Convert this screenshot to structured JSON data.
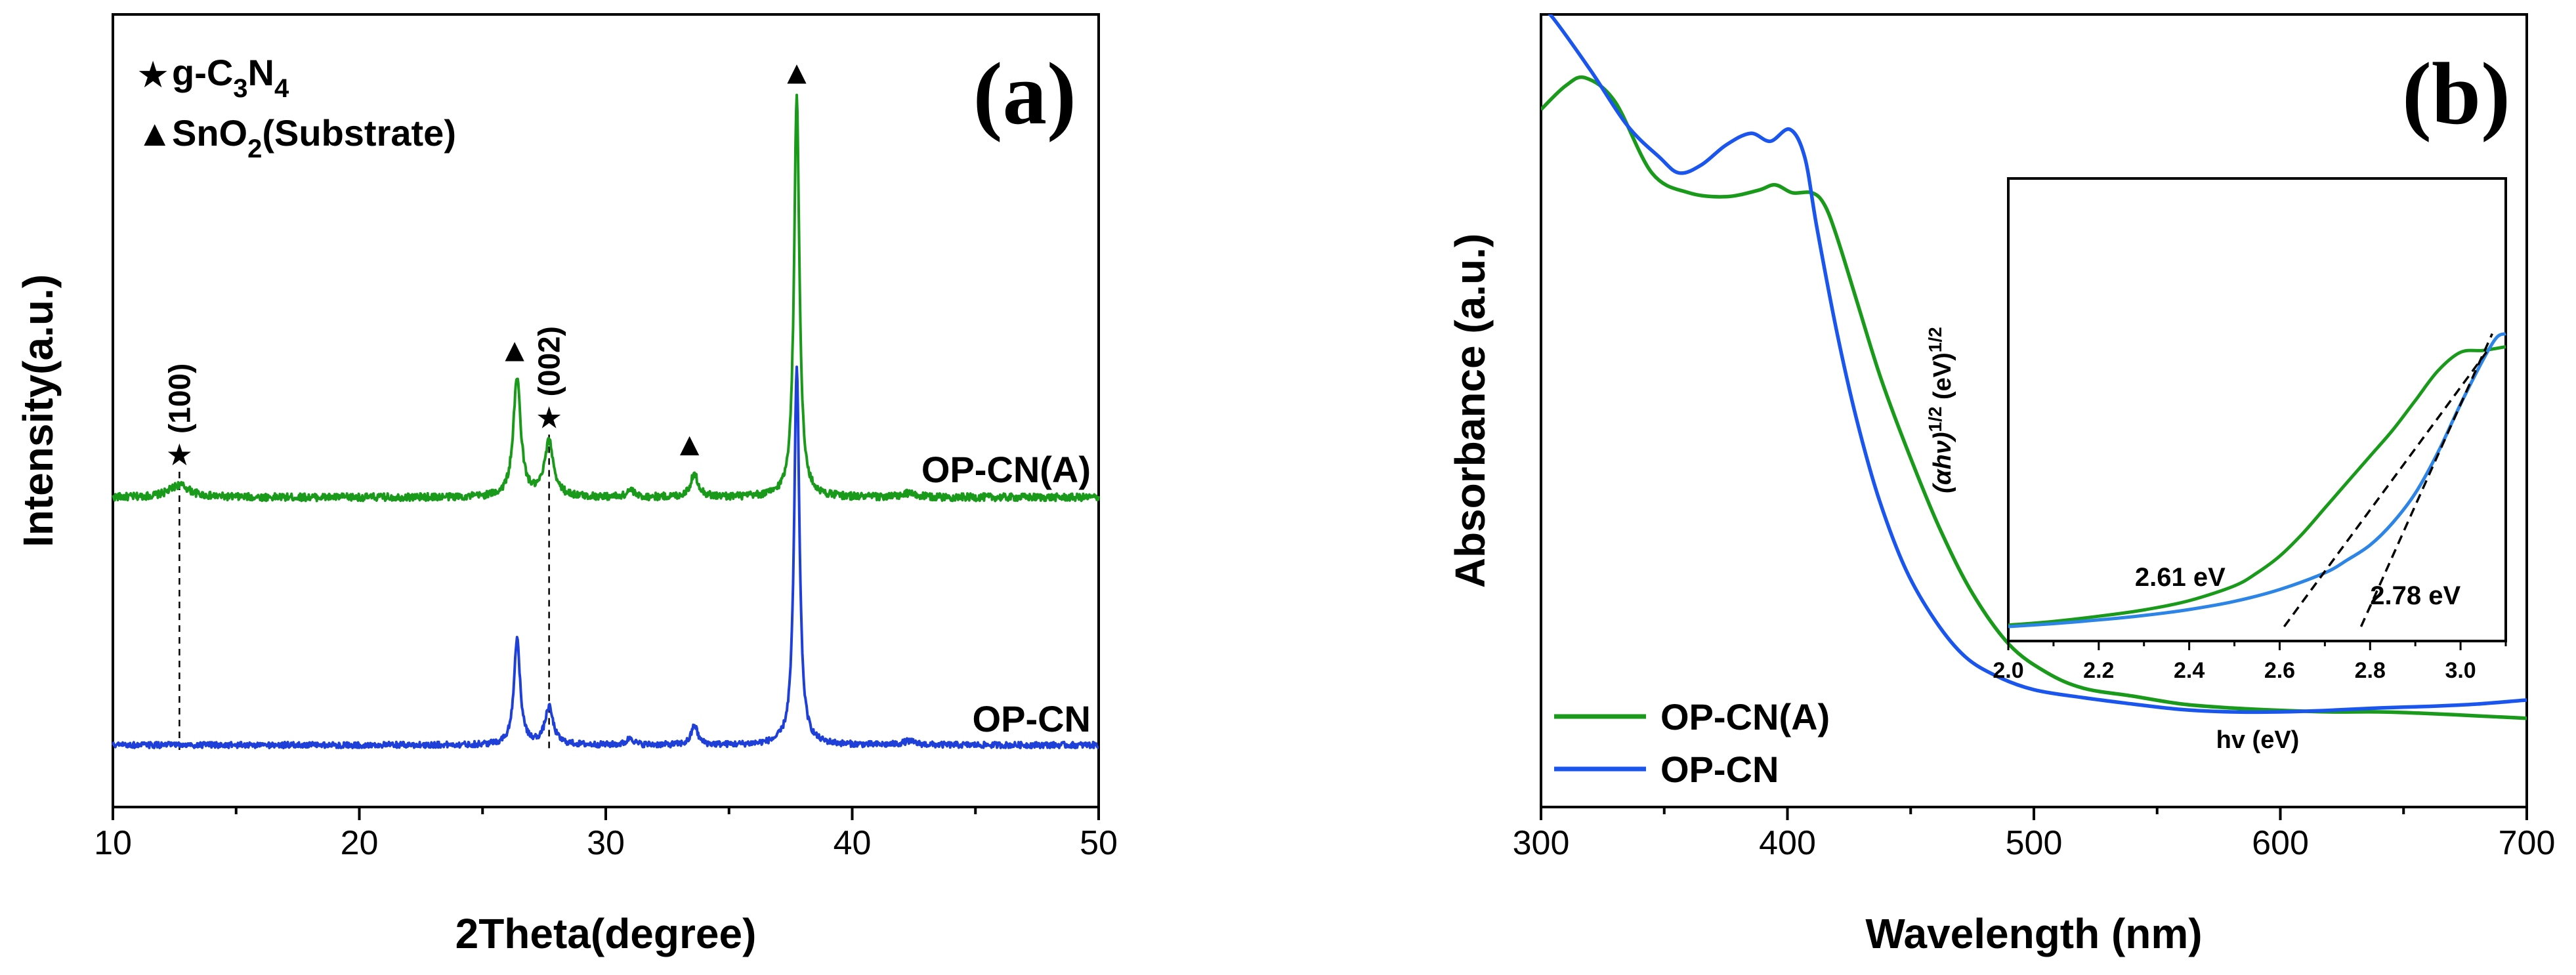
{
  "colors": {
    "green": "#1a9a1a",
    "blue": "#1f3fd9",
    "blue_b": "#1a55ee",
    "inset_blue": "#2b84e6",
    "black": "#000000"
  },
  "chart_data": [
    {
      "type": "line",
      "panel_label": "(a)",
      "xlabel": "2Theta(degree)",
      "ylabel": "Intensity(a.u.)",
      "xlim": [
        10,
        50
      ],
      "xticks": [
        "10",
        "20",
        "30",
        "40",
        "50"
      ],
      "yticks_shown": false,
      "legend": {
        "placement": "top-left",
        "entries": [
          {
            "symbol": "★",
            "label_main": "g-C",
            "sub1": "3",
            "label_mid": "N",
            "sub2": "4"
          },
          {
            "symbol": "▲",
            "label_main": "SnO",
            "sub1": "2",
            "label_rest": "(Substrate)"
          }
        ]
      },
      "series": [
        {
          "name": "OP-CN(A)",
          "color": "#1a9a1a",
          "baseline": 1.0,
          "noise": 0.015,
          "peaks": [
            {
              "x": 12.7,
              "height": 0.05,
              "width": 0.5
            },
            {
              "x": 26.4,
              "height": 0.48,
              "width": 0.18
            },
            {
              "x": 27.7,
              "height": 0.22,
              "width": 0.22
            },
            {
              "x": 31.0,
              "height": 0.03,
              "width": 0.15
            },
            {
              "x": 33.6,
              "height": 0.09,
              "width": 0.2
            },
            {
              "x": 37.75,
              "height": 1.62,
              "width": 0.13
            },
            {
              "x": 42.3,
              "height": 0.015,
              "width": 0.3
            }
          ]
        },
        {
          "name": "OP-CN",
          "color": "#1f3fd9",
          "baseline": 0.0,
          "noise": 0.012,
          "peaks": [
            {
              "x": 26.4,
              "height": 0.43,
              "width": 0.15
            },
            {
              "x": 27.7,
              "height": 0.15,
              "width": 0.2
            },
            {
              "x": 31.0,
              "height": 0.03,
              "width": 0.15
            },
            {
              "x": 33.6,
              "height": 0.08,
              "width": 0.15
            },
            {
              "x": 37.75,
              "height": 1.52,
              "width": 0.13
            },
            {
              "x": 42.3,
              "height": 0.015,
              "width": 0.3
            }
          ]
        }
      ],
      "ylim": [
        -0.25,
        2.95
      ],
      "annotations": [
        {
          "symbol": "★",
          "label": "(100)",
          "x": 12.7,
          "y": 1.13,
          "dashed_to": -0.03
        },
        {
          "symbol": "★",
          "label": "(002)",
          "x": 27.7,
          "y": 1.28,
          "dashed_to": -0.03
        },
        {
          "symbol": "▲",
          "label": "",
          "x": 26.3,
          "y": 1.55
        },
        {
          "symbol": "▲",
          "label": "",
          "x": 33.4,
          "y": 1.17
        },
        {
          "symbol": "▲",
          "label": "",
          "x": 37.75,
          "y": 2.67
        }
      ]
    },
    {
      "type": "line",
      "panel_label": "(b)",
      "xlabel": "Wavelength (nm)",
      "ylabel": "Absorbance (a.u.)",
      "xlim": [
        300,
        700
      ],
      "xticks": [
        "300",
        "400",
        "500",
        "600",
        "700"
      ],
      "yticks_shown": false,
      "ylim": [
        0,
        1
      ],
      "legend": {
        "placement": "bottom-left",
        "entries": [
          "OP-CN(A)",
          "OP-CN"
        ]
      },
      "series": [
        {
          "name": "OP-CN(A)",
          "color": "#1a9a1a",
          "points": [
            [
              300,
              0.88
            ],
            [
              310,
              0.91
            ],
            [
              318,
              0.92
            ],
            [
              330,
              0.89
            ],
            [
              345,
              0.8
            ],
            [
              360,
              0.775
            ],
            [
              375,
              0.77
            ],
            [
              388,
              0.778
            ],
            [
              395,
              0.785
            ],
            [
              402,
              0.775
            ],
            [
              410,
              0.775
            ],
            [
              415,
              0.76
            ],
            [
              420,
              0.72
            ],
            [
              428,
              0.64
            ],
            [
              438,
              0.54
            ],
            [
              450,
              0.44
            ],
            [
              462,
              0.35
            ],
            [
              475,
              0.27
            ],
            [
              490,
              0.205
            ],
            [
              505,
              0.17
            ],
            [
              520,
              0.15
            ],
            [
              540,
              0.14
            ],
            [
              560,
              0.13
            ],
            [
              580,
              0.125
            ],
            [
              600,
              0.122
            ],
            [
              620,
              0.12
            ],
            [
              640,
              0.12
            ],
            [
              660,
              0.118
            ],
            [
              680,
              0.115
            ],
            [
              700,
              0.112
            ]
          ]
        },
        {
          "name": "OP-CN",
          "color": "#1a55ee",
          "points": [
            [
              300,
              1.01
            ],
            [
              305,
              0.995
            ],
            [
              320,
              0.93
            ],
            [
              335,
              0.86
            ],
            [
              348,
              0.82
            ],
            [
              356,
              0.8
            ],
            [
              365,
              0.81
            ],
            [
              375,
              0.835
            ],
            [
              385,
              0.85
            ],
            [
              393,
              0.84
            ],
            [
              401,
              0.855
            ],
            [
              407,
              0.82
            ],
            [
              412,
              0.73
            ],
            [
              420,
              0.6
            ],
            [
              428,
              0.49
            ],
            [
              437,
              0.39
            ],
            [
              448,
              0.3
            ],
            [
              460,
              0.235
            ],
            [
              472,
              0.19
            ],
            [
              485,
              0.165
            ],
            [
              500,
              0.148
            ],
            [
              520,
              0.138
            ],
            [
              540,
              0.13
            ],
            [
              560,
              0.123
            ],
            [
              580,
              0.12
            ],
            [
              600,
              0.12
            ],
            [
              620,
              0.122
            ],
            [
              640,
              0.125
            ],
            [
              660,
              0.127
            ],
            [
              680,
              0.13
            ],
            [
              700,
              0.135
            ]
          ]
        }
      ],
      "inset": {
        "xlabel": "hv (eV)",
        "ylabel_main": "(αhν)",
        "ylabel_exp": "1/2",
        "ylabel_unit": " (eV)",
        "ylabel_unit_exp": "1/2",
        "xlim": [
          2.0,
          3.1
        ],
        "ylim": [
          0,
          1
        ],
        "xticks": [
          "2.0",
          "2.2",
          "2.4",
          "2.6",
          "2.8",
          "3.0"
        ],
        "series": [
          {
            "name": "OP-CN(A)",
            "color": "#1a9a1a",
            "points": [
              [
                2.0,
                0.004
              ],
              [
                2.1,
                0.014
              ],
              [
                2.2,
                0.028
              ],
              [
                2.3,
                0.045
              ],
              [
                2.4,
                0.07
              ],
              [
                2.5,
                0.11
              ],
              [
                2.55,
                0.145
              ],
              [
                2.6,
                0.19
              ],
              [
                2.65,
                0.25
              ],
              [
                2.7,
                0.32
              ],
              [
                2.75,
                0.39
              ],
              [
                2.8,
                0.46
              ],
              [
                2.85,
                0.53
              ],
              [
                2.9,
                0.61
              ],
              [
                2.95,
                0.69
              ],
              [
                3.0,
                0.74
              ],
              [
                3.05,
                0.745
              ],
              [
                3.1,
                0.755
              ]
            ]
          },
          {
            "name": "OP-CN",
            "color": "#2b84e6",
            "points": [
              [
                2.0,
                0.0
              ],
              [
                2.1,
                0.008
              ],
              [
                2.2,
                0.018
              ],
              [
                2.3,
                0.03
              ],
              [
                2.4,
                0.046
              ],
              [
                2.5,
                0.068
              ],
              [
                2.6,
                0.1
              ],
              [
                2.7,
                0.145
              ],
              [
                2.75,
                0.18
              ],
              [
                2.8,
                0.22
              ],
              [
                2.85,
                0.28
              ],
              [
                2.9,
                0.36
              ],
              [
                2.95,
                0.47
              ],
              [
                3.0,
                0.6
              ],
              [
                3.05,
                0.72
              ],
              [
                3.08,
                0.78
              ],
              [
                3.1,
                0.79
              ]
            ]
          }
        ],
        "tangents": [
          {
            "x0": 2.61,
            "x1": 3.06
          },
          {
            "x0": 2.78,
            "x1": 3.07
          }
        ],
        "annotations": [
          {
            "text": "2.61 eV",
            "x": 2.38,
            "y": 0.11
          },
          {
            "text": "2.78 eV",
            "x": 2.9,
            "y": 0.06
          }
        ]
      }
    }
  ]
}
